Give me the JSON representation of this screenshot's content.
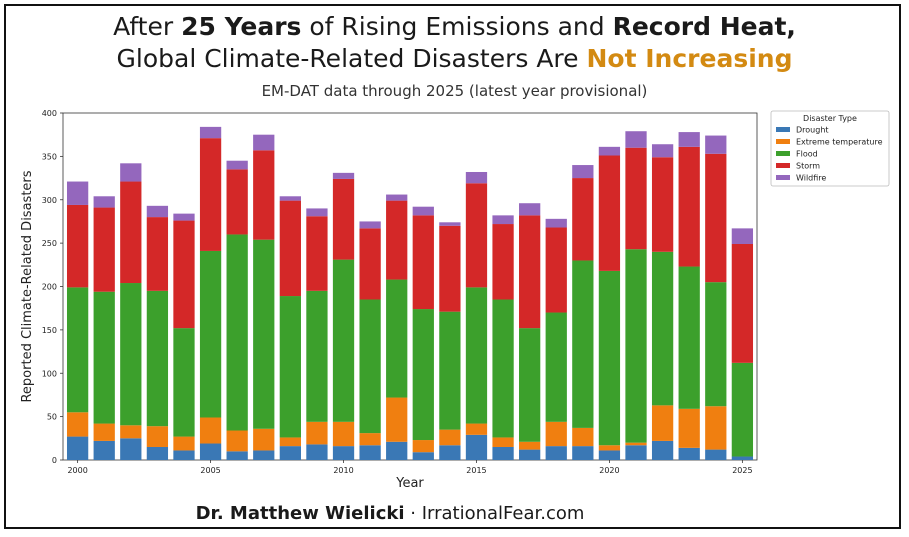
{
  "header": {
    "line1": {
      "a": "After ",
      "b": "25 Years",
      "c": " of Rising Emissions and ",
      "d": "Record Heat,"
    },
    "line2": {
      "a": "Global Climate-Related Disasters Are ",
      "b": "Not Increasing"
    },
    "subtitle": "EM-DAT data through 2025  (latest year provisional)"
  },
  "footer": {
    "author": "Dr. Matthew Wielicki",
    "sep": " · ",
    "site": "IrrationalFear.com"
  },
  "colors": {
    "Drought": "#3a78b5",
    "Extreme temperature": "#f07f10",
    "Flood": "#3ca02c",
    "Storm": "#d42828",
    "Wildfire": "#9467bd"
  },
  "chart_data": {
    "type": "bar",
    "stacked": true,
    "xlabel": "Year",
    "ylabel": "Reported Climate-Related Disasters",
    "ylim": [
      0,
      400
    ],
    "yticks": [
      0,
      50,
      100,
      150,
      200,
      250,
      300,
      350,
      400
    ],
    "xticks": [
      2000,
      2005,
      2010,
      2015,
      2020,
      2025
    ],
    "legend_title": "Disaster Type",
    "legend_position": "upper right, outside",
    "categories": [
      2000,
      2001,
      2002,
      2003,
      2004,
      2005,
      2006,
      2007,
      2008,
      2009,
      2010,
      2011,
      2012,
      2013,
      2014,
      2015,
      2016,
      2017,
      2018,
      2019,
      2020,
      2021,
      2022,
      2023,
      2024,
      2025
    ],
    "series": [
      {
        "name": "Drought",
        "values": [
          27,
          22,
          25,
          15,
          11,
          19,
          10,
          11,
          16,
          18,
          16,
          17,
          21,
          9,
          17,
          29,
          15,
          12,
          16,
          16,
          11,
          17,
          22,
          14,
          12,
          4
        ]
      },
      {
        "name": "Extreme temperature",
        "values": [
          28,
          20,
          15,
          24,
          16,
          30,
          24,
          25,
          10,
          26,
          28,
          14,
          51,
          14,
          18,
          13,
          11,
          9,
          28,
          21,
          6,
          3,
          41,
          45,
          50,
          0
        ]
      },
      {
        "name": "Flood",
        "values": [
          144,
          152,
          164,
          156,
          125,
          192,
          226,
          218,
          163,
          151,
          187,
          154,
          136,
          151,
          136,
          157,
          159,
          131,
          126,
          193,
          201,
          223,
          177,
          164,
          143,
          108
        ]
      },
      {
        "name": "Storm",
        "values": [
          95,
          97,
          117,
          85,
          124,
          130,
          75,
          103,
          110,
          86,
          93,
          82,
          91,
          108,
          99,
          120,
          87,
          130,
          98,
          95,
          133,
          117,
          109,
          138,
          148,
          137
        ]
      },
      {
        "name": "Wildfire",
        "values": [
          27,
          13,
          21,
          13,
          8,
          13,
          10,
          18,
          5,
          9,
          7,
          8,
          7,
          10,
          4,
          13,
          10,
          14,
          10,
          15,
          10,
          19,
          15,
          17,
          21,
          18
        ]
      }
    ]
  }
}
